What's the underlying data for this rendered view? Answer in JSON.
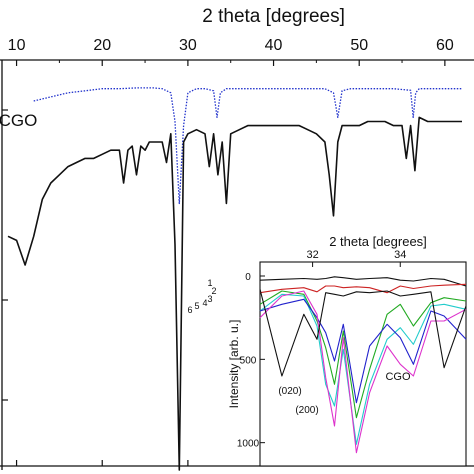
{
  "chart_data": [
    {
      "type": "line",
      "rendering": "mirrored",
      "xlabel": "2 theta [degrees]",
      "ylabel": "",
      "x_ticks": [
        10,
        20,
        30,
        40,
        50,
        60
      ],
      "x_tick_labels": [
        "10",
        "20",
        "30",
        "40",
        "50",
        "60"
      ],
      "xlim": [
        9,
        62
      ],
      "ylim": [
        0,
        100
      ],
      "axis_position": "top",
      "series": [
        {
          "name": "CGO",
          "color": "#2233cc",
          "style": "dotted",
          "x": [
            12,
            14,
            16,
            18,
            20,
            22,
            24,
            26,
            27,
            28,
            28.5,
            29,
            29.5,
            30,
            31,
            32,
            33,
            33.4,
            33.8,
            34.5,
            36,
            38,
            40,
            42,
            44,
            46,
            47,
            47.5,
            48,
            49,
            50,
            52,
            54,
            56,
            56.3,
            56.6,
            57,
            58,
            60,
            62
          ],
          "y": [
            90,
            91,
            92,
            92.5,
            93,
            93,
            93.2,
            93.2,
            93,
            92,
            85,
            65,
            84,
            92,
            93,
            93,
            92.5,
            86,
            92,
            93,
            93,
            93,
            93,
            93,
            93,
            93,
            92,
            86,
            92.5,
            93,
            93,
            93,
            93,
            92.6,
            86,
            92,
            93,
            93,
            93,
            93
          ]
        },
        {
          "name": "",
          "color": "#111111",
          "style": "solid",
          "x": [
            9,
            10,
            11,
            12,
            13,
            14,
            15,
            16,
            17,
            18,
            19,
            20,
            21,
            22,
            22.5,
            23,
            23.5,
            24,
            24.5,
            25,
            25.5,
            26,
            27,
            27.5,
            28,
            28.5,
            29,
            29.5,
            30,
            31,
            32,
            32.5,
            33,
            33.5,
            34,
            34.5,
            35,
            36,
            37,
            38,
            39,
            40,
            41,
            42,
            43,
            44,
            45,
            46,
            46.5,
            47,
            47.5,
            48,
            49,
            50,
            51,
            52,
            53,
            54,
            55,
            55.5,
            56,
            56.5,
            57,
            58,
            59,
            60,
            61,
            62
          ],
          "y": [
            57,
            56,
            50,
            57,
            66,
            70,
            72,
            74,
            75,
            76,
            76,
            77,
            78,
            78,
            70,
            78,
            79,
            72,
            79,
            78,
            80,
            80,
            80,
            75,
            82,
            55,
            0,
            80,
            82,
            83,
            82,
            74,
            82,
            72,
            80,
            65,
            82,
            83,
            84,
            84,
            84,
            84,
            84,
            84,
            84,
            83,
            82,
            80,
            72,
            62,
            80,
            84,
            84,
            84,
            85,
            85,
            85,
            84,
            84,
            76,
            84,
            73,
            86,
            85,
            85,
            85,
            85,
            85
          ]
        }
      ],
      "annotations": [
        "CGO"
      ]
    },
    {
      "type": "line",
      "rendering": "mirrored-inset",
      "xlabel": "2 theta [degrees]",
      "ylabel": "Intensity [arb. u.]",
      "x_ticks": [
        32,
        34
      ],
      "x_tick_labels": [
        "32",
        "34"
      ],
      "y_ticks": [
        0,
        500,
        1000
      ],
      "y_tick_labels": [
        "0",
        "500",
        "1000"
      ],
      "xlim": [
        30.8,
        35.5
      ],
      "ylim": [
        0,
        1080
      ],
      "axis_position": "top",
      "series": [
        {
          "name": "1",
          "color": "#111111",
          "x": [
            30.8,
            31.3,
            31.8,
            32.1,
            32.3,
            32.5,
            32.7,
            33,
            33.3,
            33.7,
            34,
            34.3,
            34.7,
            35,
            35.5
          ],
          "y": [
            25,
            20,
            15,
            20,
            15,
            5,
            10,
            20,
            15,
            10,
            25,
            30,
            15,
            20,
            60
          ]
        },
        {
          "name": "2",
          "color": "#cc2222",
          "x": [
            30.8,
            31.3,
            31.8,
            32.1,
            32.3,
            32.5,
            32.7,
            33,
            33.3,
            33.7,
            34,
            34.3,
            34.7,
            35,
            35.5
          ],
          "y": [
            100,
            80,
            70,
            95,
            60,
            60,
            70,
            65,
            70,
            100,
            60,
            75,
            60,
            55,
            50
          ]
        },
        {
          "name": "3",
          "color": "#22aa22",
          "x": [
            30.8,
            31.3,
            31.8,
            32.1,
            32.3,
            32.5,
            32.7,
            33,
            33.3,
            33.7,
            34,
            34.3,
            34.7,
            35,
            35.5
          ],
          "y": [
            170,
            90,
            110,
            270,
            430,
            650,
            330,
            850,
            560,
            230,
            170,
            300,
            160,
            130,
            150
          ]
        },
        {
          "name": "4",
          "color": "#22cccc",
          "x": [
            30.8,
            31.3,
            31.8,
            32.1,
            32.3,
            32.5,
            32.7,
            33,
            33.3,
            33.7,
            34,
            34.3,
            34.7,
            35,
            35.5
          ],
          "y": [
            210,
            110,
            120,
            300,
            650,
            780,
            440,
            1010,
            650,
            380,
            310,
            410,
            180,
            170,
            200
          ]
        },
        {
          "name": "5",
          "color": "#2222cc",
          "x": [
            30.8,
            31.3,
            31.8,
            32.1,
            32.3,
            32.5,
            32.7,
            33,
            33.3,
            33.7,
            34,
            34.3,
            34.7,
            35,
            35.5
          ],
          "y": [
            210,
            170,
            140,
            250,
            340,
            510,
            290,
            760,
            420,
            290,
            370,
            530,
            210,
            240,
            380
          ]
        },
        {
          "name": "6",
          "color": "#dd33cc",
          "x": [
            30.8,
            31.3,
            31.8,
            32.1,
            32.3,
            32.5,
            32.7,
            33,
            33.3,
            33.7,
            34,
            34.3,
            34.7,
            35,
            35.5
          ],
          "y": [
            250,
            120,
            90,
            230,
            610,
            900,
            370,
            1060,
            700,
            420,
            530,
            600,
            270,
            270,
            200
          ]
        },
        {
          "name": "",
          "color": "#111111",
          "x": [
            30.8,
            31.3,
            31.8,
            32.1,
            32.3,
            32.5,
            32.7,
            33,
            33.3,
            33.7,
            34,
            34.3,
            34.7,
            35,
            35.5
          ],
          "y": [
            80,
            600,
            230,
            380,
            100,
            110,
            120,
            95,
            100,
            90,
            120,
            110,
            95,
            550,
            180
          ]
        }
      ],
      "annotations": [
        "CGO",
        "(020)",
        "(200)"
      ]
    }
  ]
}
